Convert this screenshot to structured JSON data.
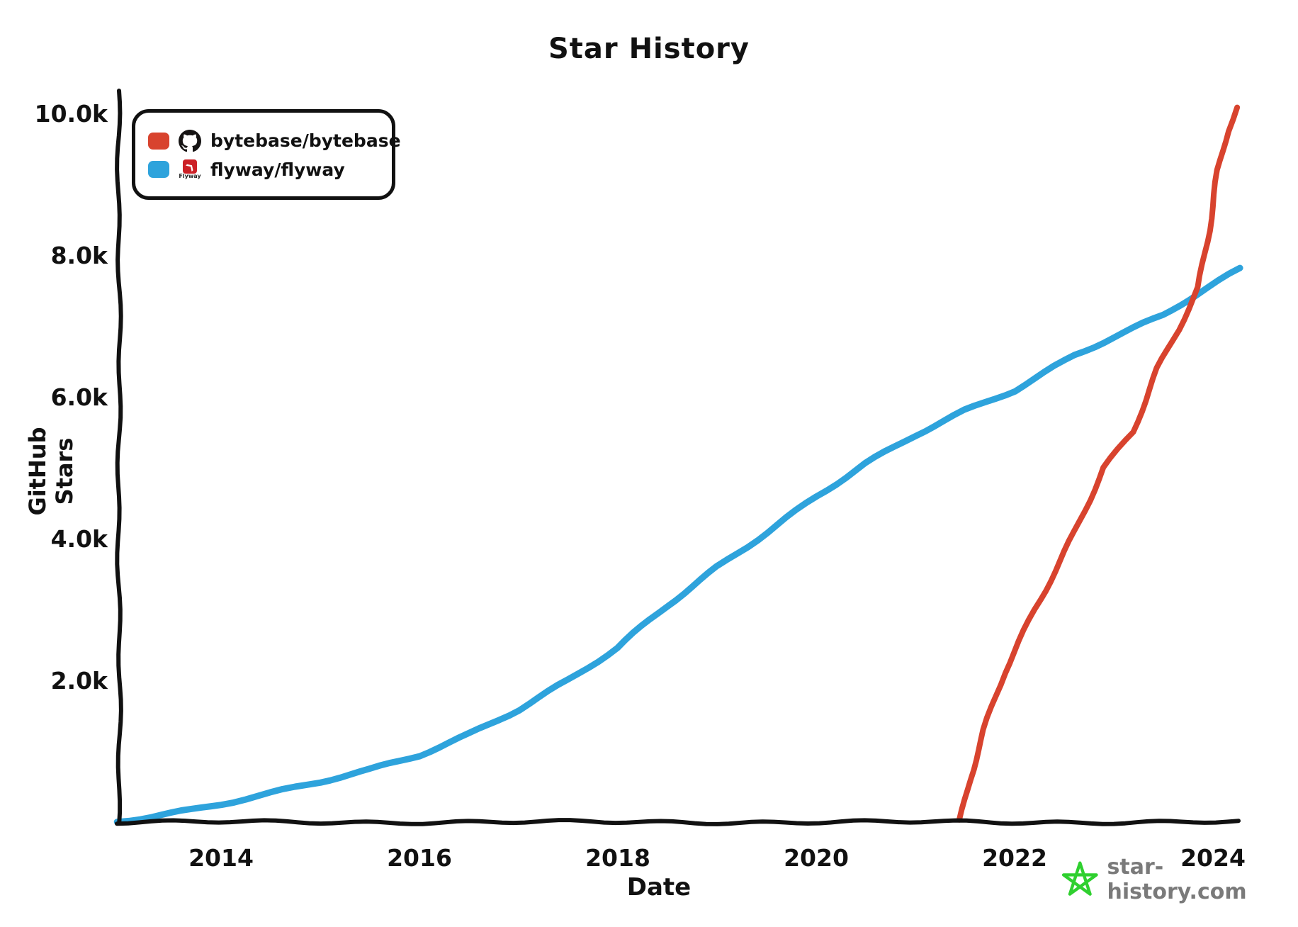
{
  "chart_data": {
    "type": "line",
    "title": "Star History",
    "xlabel": "Date",
    "ylabel": "GitHub Stars",
    "x_ticks": [
      "2014",
      "2016",
      "2018",
      "2020",
      "2022",
      "2024"
    ],
    "x_tick_years": [
      2014,
      2016,
      2018,
      2020,
      2022,
      2024
    ],
    "y_ticks": [
      "2.0k",
      "4.0k",
      "6.0k",
      "8.0k",
      "10.0k"
    ],
    "y_tick_values": [
      2000,
      4000,
      6000,
      8000,
      10000
    ],
    "x_range": [
      2013.0,
      2024.3
    ],
    "ylim": [
      0,
      10000
    ],
    "grid": false,
    "legend_position": "top-left",
    "axis_color": "#111111",
    "series": [
      {
        "name": "bytebase/bytebase",
        "color": "#d8432e",
        "points": [
          [
            2021.45,
            30
          ],
          [
            2021.55,
            600
          ],
          [
            2021.7,
            1300
          ],
          [
            2021.9,
            2100
          ],
          [
            2022.2,
            3000
          ],
          [
            2022.6,
            4100
          ],
          [
            2022.9,
            5000
          ],
          [
            2023.2,
            5500
          ],
          [
            2023.45,
            6400
          ],
          [
            2023.65,
            6950
          ],
          [
            2023.85,
            7550
          ],
          [
            2023.95,
            8350
          ],
          [
            2024.05,
            9200
          ],
          [
            2024.15,
            9750
          ],
          [
            2024.25,
            10080
          ]
        ]
      },
      {
        "name": "flyway/flyway",
        "color": "#2ea3dc",
        "points": [
          [
            2012.95,
            20
          ],
          [
            2013.3,
            90
          ],
          [
            2013.7,
            180
          ],
          [
            2014.0,
            260
          ],
          [
            2014.5,
            400
          ],
          [
            2015.0,
            560
          ],
          [
            2015.5,
            730
          ],
          [
            2016.0,
            950
          ],
          [
            2016.5,
            1250
          ],
          [
            2017.0,
            1600
          ],
          [
            2017.5,
            2000
          ],
          [
            2018.0,
            2450
          ],
          [
            2018.5,
            3050
          ],
          [
            2019.0,
            3600
          ],
          [
            2019.5,
            4100
          ],
          [
            2020.0,
            4600
          ],
          [
            2020.5,
            5050
          ],
          [
            2021.0,
            5450
          ],
          [
            2021.5,
            5800
          ],
          [
            2022.0,
            6100
          ],
          [
            2022.6,
            6600
          ],
          [
            2023.0,
            6850
          ],
          [
            2023.5,
            7150
          ],
          [
            2023.85,
            7450
          ],
          [
            2024.28,
            7800
          ]
        ]
      }
    ]
  },
  "legend": {
    "flyway_caption": "Flyway",
    "flyway_logo_color": "#cc2127",
    "github_icon_color": "#161414"
  },
  "footer": {
    "site": "star-history.com",
    "text_color": "#7a7a7a",
    "star_color": "#2fd02f"
  }
}
